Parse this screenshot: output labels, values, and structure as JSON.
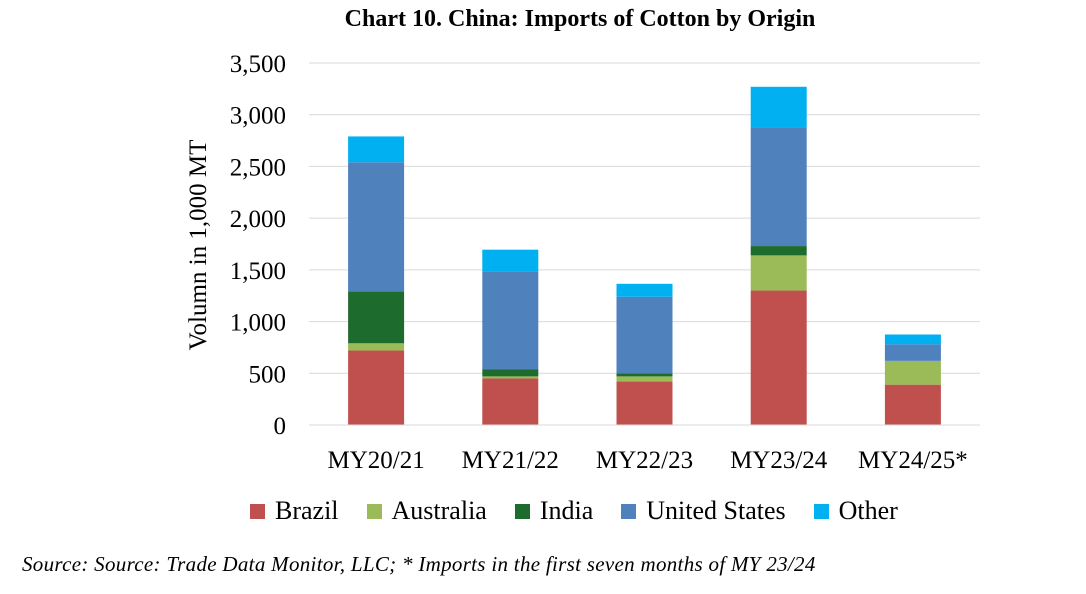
{
  "chart_data": {
    "type": "bar",
    "stacked": true,
    "title": "Chart 10. China: Imports of Cotton by Origin",
    "ylabel": "Volumn in 1,000 MT",
    "xlabel": "",
    "ylim": [
      0,
      3500
    ],
    "yticks": [
      "0",
      "500",
      "1,000",
      "1,500",
      "2,000",
      "2,500",
      "3,000",
      "3,500"
    ],
    "ytick_values": [
      0,
      500,
      1000,
      1500,
      2000,
      2500,
      3000,
      3500
    ],
    "grid": true,
    "legend_position": "bottom",
    "categories": [
      "MY20/21",
      "MY21/22",
      "MY22/23",
      "MY23/24",
      "MY24/25*"
    ],
    "series": [
      {
        "name": "Brazil",
        "color": "#C0504D",
        "values": [
          720,
          450,
          420,
          1300,
          390
        ]
      },
      {
        "name": "Australia",
        "color": "#9BBB59",
        "values": [
          70,
          20,
          50,
          340,
          230
        ]
      },
      {
        "name": "India",
        "color": "#1E6B2E",
        "values": [
          500,
          70,
          30,
          90,
          0
        ]
      },
      {
        "name": "United States",
        "color": "#4F81BD",
        "values": [
          1250,
          940,
          740,
          1150,
          160
        ]
      },
      {
        "name": "Other",
        "color": "#00B0F0",
        "values": [
          250,
          215,
          125,
          390,
          95
        ]
      }
    ]
  },
  "source_note": "Source: Source: Trade Data Monitor, LLC; * Imports in the first seven months of MY 23/24"
}
